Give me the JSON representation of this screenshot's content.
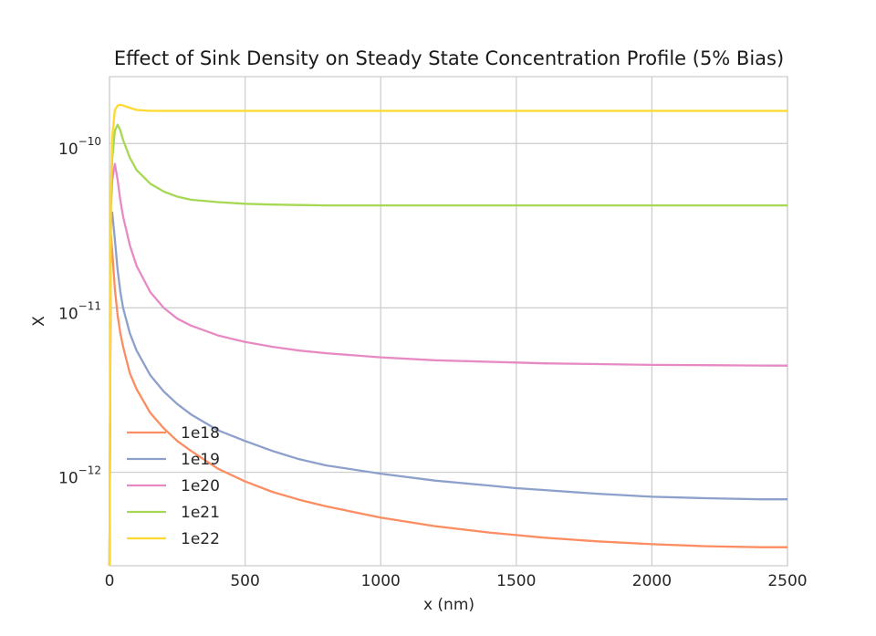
{
  "chart_data": {
    "type": "line",
    "title": "Effect of Sink Density on Steady State Concentration Profile (5% Bias)",
    "xlabel": "x (nm)",
    "ylabel": "X",
    "xlim": [
      0,
      2500
    ],
    "ylim": [
      2.7e-13,
      2.55e-10
    ],
    "yscale": "log",
    "grid": true,
    "legend_position": "lower-left",
    "x_ticks": [
      0,
      500,
      1000,
      1500,
      2000,
      2500
    ],
    "x_tick_labels": [
      "0",
      "500",
      "1000",
      "1500",
      "2000",
      "2500"
    ],
    "y_ticks": [
      {
        "value": 1e-10,
        "base": "10",
        "exp": "−10"
      },
      {
        "value": 1e-11,
        "base": "10",
        "exp": "−11"
      },
      {
        "value": 1e-12,
        "base": "10",
        "exp": "−12"
      }
    ],
    "x": [
      0,
      5,
      10,
      20,
      30,
      40,
      50,
      75,
      100,
      150,
      200,
      250,
      300,
      400,
      500,
      600,
      700,
      800,
      1000,
      1200,
      1400,
      1500,
      1600,
      1800,
      2000,
      2200,
      2400,
      2500
    ],
    "series": [
      {
        "name": "1e18",
        "color": "#fc8d62",
        "values": [
          2.7e-13,
          2.8e-11,
          2.2e-11,
          1.3e-11,
          9e-12,
          7e-12,
          5.8e-12,
          4e-12,
          3.2e-12,
          2.3e-12,
          1.85e-12,
          1.55e-12,
          1.35e-12,
          1.05e-12,
          8.8e-13,
          7.6e-13,
          6.8e-13,
          6.2e-13,
          5.3e-13,
          4.7e-13,
          4.3e-13,
          4.15e-13,
          4e-13,
          3.8e-13,
          3.65e-13,
          3.55e-13,
          3.5e-13,
          3.5e-13
        ]
      },
      {
        "name": "1e19",
        "color": "#8da0cb",
        "values": [
          2.7e-13,
          3.3e-11,
          3.8e-11,
          2.6e-11,
          1.7e-11,
          1.25e-11,
          1e-11,
          7e-12,
          5.5e-12,
          3.9e-12,
          3.1e-12,
          2.6e-12,
          2.25e-12,
          1.8e-12,
          1.55e-12,
          1.35e-12,
          1.2e-12,
          1.1e-12,
          9.8e-13,
          8.9e-13,
          8.3e-13,
          8e-13,
          7.8e-13,
          7.4e-13,
          7.1e-13,
          6.95e-13,
          6.85e-13,
          6.85e-13
        ]
      },
      {
        "name": "1e20",
        "color": "#e78ac3",
        "values": [
          2.7e-13,
          4e-11,
          6e-11,
          7.5e-11,
          6e-11,
          4.5e-11,
          3.6e-11,
          2.4e-11,
          1.8e-11,
          1.25e-11,
          1e-11,
          8.6e-12,
          7.8e-12,
          6.8e-12,
          6.2e-12,
          5.8e-12,
          5.5e-12,
          5.3e-12,
          5e-12,
          4.8e-12,
          4.7e-12,
          4.65e-12,
          4.6e-12,
          4.55e-12,
          4.5e-12,
          4.48e-12,
          4.46e-12,
          4.45e-12
        ]
      },
      {
        "name": "1e21",
        "color": "#a6d854",
        "values": [
          2.7e-13,
          4.5e-11,
          8e-11,
          1.2e-10,
          1.3e-10,
          1.2e-10,
          1.05e-10,
          8.2e-11,
          6.9e-11,
          5.7e-11,
          5.1e-11,
          4.75e-11,
          4.55e-11,
          4.4e-11,
          4.3e-11,
          4.25e-11,
          4.22e-11,
          4.2e-11,
          4.2e-11,
          4.2e-11,
          4.2e-11,
          4.2e-11,
          4.2e-11,
          4.2e-11,
          4.2e-11,
          4.2e-11,
          4.2e-11,
          4.2e-11
        ]
      },
      {
        "name": "1e22",
        "color": "#ffd92f",
        "values": [
          2.7e-13,
          5e-11,
          1.1e-10,
          1.6e-10,
          1.7e-10,
          1.72e-10,
          1.7e-10,
          1.65e-10,
          1.6e-10,
          1.58e-10,
          1.58e-10,
          1.58e-10,
          1.58e-10,
          1.58e-10,
          1.58e-10,
          1.58e-10,
          1.58e-10,
          1.58e-10,
          1.58e-10,
          1.58e-10,
          1.58e-10,
          1.58e-10,
          1.58e-10,
          1.58e-10,
          1.58e-10,
          1.58e-10,
          1.58e-10,
          1.58e-10
        ]
      }
    ]
  }
}
